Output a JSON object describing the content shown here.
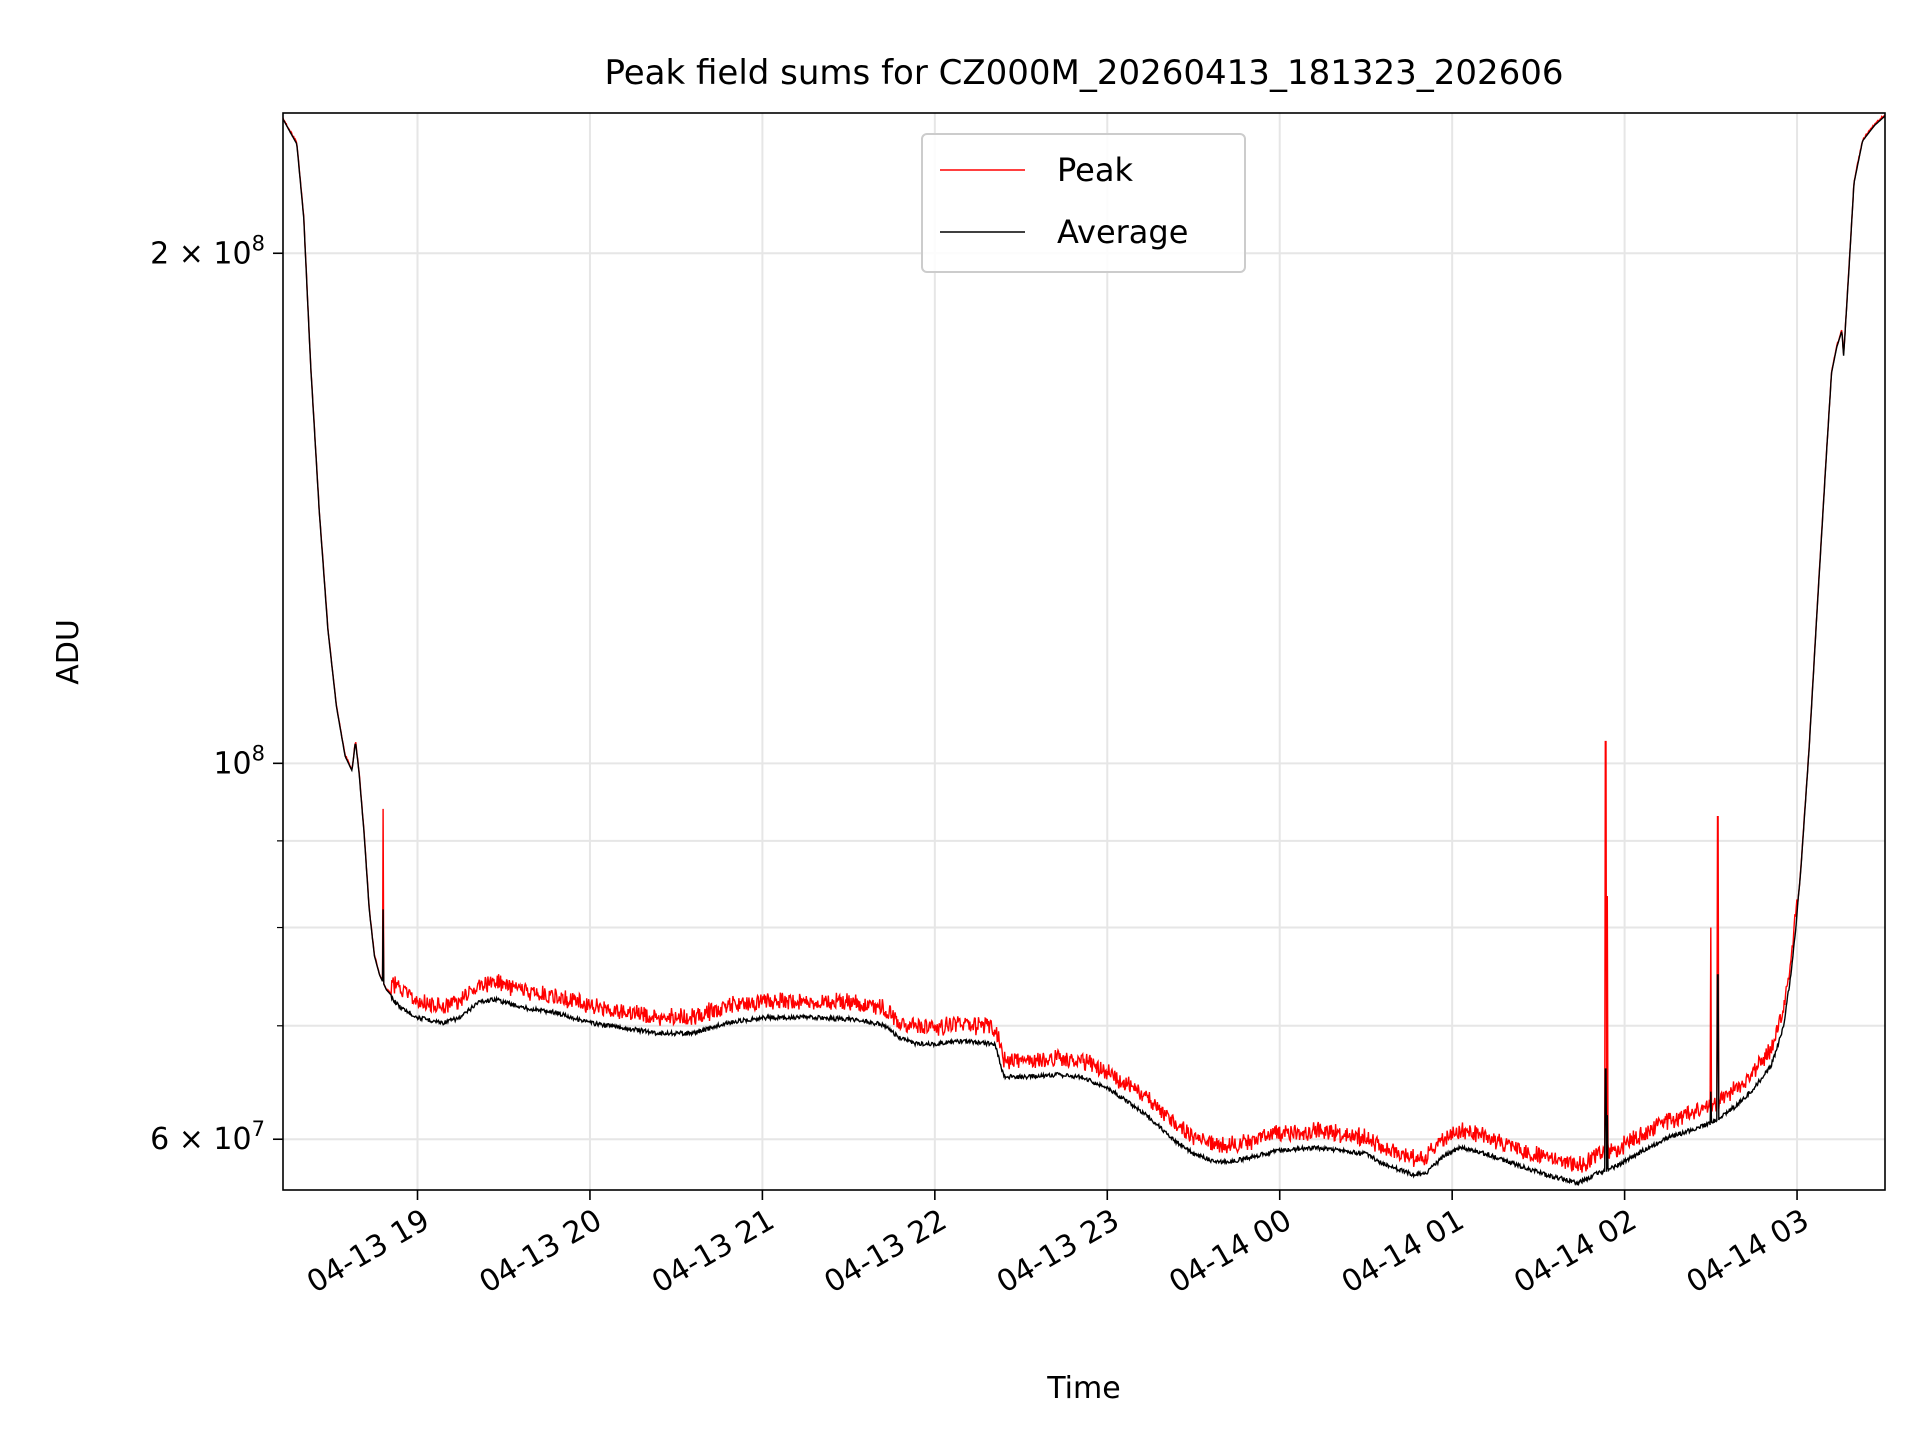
{
  "chart_data": {
    "type": "line",
    "title": "Peak field sums for CZ000M_20260413_181323_202606",
    "xlabel": "Time",
    "ylabel": "ADU",
    "yscale": "log",
    "ylim": [
      56000000,
      242000000
    ],
    "xlim_hours": [
      18.22,
      27.51
    ],
    "grid": true,
    "legend_position": "upper center",
    "x_ticks": [
      {
        "hour": 19,
        "label": "04-13 19"
      },
      {
        "hour": 20,
        "label": "04-13 20"
      },
      {
        "hour": 21,
        "label": "04-13 21"
      },
      {
        "hour": 22,
        "label": "04-13 22"
      },
      {
        "hour": 23,
        "label": "04-13 23"
      },
      {
        "hour": 24,
        "label": "04-14 00"
      },
      {
        "hour": 25,
        "label": "04-14 01"
      },
      {
        "hour": 26,
        "label": "04-14 02"
      },
      {
        "hour": 27,
        "label": "04-14 03"
      }
    ],
    "y_ticks": [
      {
        "value": 60000000,
        "base": "6 × 10",
        "exp": "7"
      },
      {
        "value": 100000000,
        "base": "10",
        "exp": "8"
      },
      {
        "value": 200000000,
        "base": "2 × 10",
        "exp": "8"
      }
    ],
    "y_minor_ticks": [
      70000000,
      80000000,
      90000000
    ],
    "series": [
      {
        "name": "Peak",
        "color": "#ff0000"
      },
      {
        "name": "Average",
        "color": "#000000"
      }
    ],
    "average_points": [
      [
        18.22,
        240000000
      ],
      [
        18.3,
        232000000
      ],
      [
        18.34,
        210000000
      ],
      [
        18.38,
        172000000
      ],
      [
        18.43,
        141000000
      ],
      [
        18.48,
        120000000
      ],
      [
        18.53,
        108000000
      ],
      [
        18.58,
        101000000
      ],
      [
        18.62,
        99000000
      ],
      [
        18.64,
        103000000
      ],
      [
        18.66,
        99000000
      ],
      [
        18.69,
        91000000
      ],
      [
        18.72,
        82000000
      ],
      [
        18.75,
        77000000
      ],
      [
        18.78,
        75000000
      ],
      [
        18.82,
        73500000
      ],
      [
        18.9,
        72000000
      ],
      [
        19.0,
        71000000
      ],
      [
        19.15,
        70500000
      ],
      [
        19.25,
        71000000
      ],
      [
        19.35,
        72500000
      ],
      [
        19.45,
        72800000
      ],
      [
        19.6,
        72000000
      ],
      [
        19.8,
        71500000
      ],
      [
        20.0,
        70500000
      ],
      [
        20.2,
        70000000
      ],
      [
        20.4,
        69500000
      ],
      [
        20.6,
        69500000
      ],
      [
        20.8,
        70500000
      ],
      [
        21.0,
        71000000
      ],
      [
        21.3,
        71000000
      ],
      [
        21.55,
        70800000
      ],
      [
        21.7,
        70300000
      ],
      [
        21.8,
        69000000
      ],
      [
        21.9,
        68500000
      ],
      [
        22.0,
        68500000
      ],
      [
        22.1,
        68700000
      ],
      [
        22.2,
        68700000
      ],
      [
        22.35,
        68500000
      ],
      [
        22.4,
        65500000
      ],
      [
        22.55,
        65500000
      ],
      [
        22.7,
        65700000
      ],
      [
        22.85,
        65500000
      ],
      [
        23.0,
        64500000
      ],
      [
        23.2,
        62500000
      ],
      [
        23.4,
        60000000
      ],
      [
        23.5,
        59000000
      ],
      [
        23.6,
        58500000
      ],
      [
        23.7,
        58300000
      ],
      [
        23.85,
        58800000
      ],
      [
        24.0,
        59300000
      ],
      [
        24.2,
        59500000
      ],
      [
        24.35,
        59300000
      ],
      [
        24.5,
        59000000
      ],
      [
        24.6,
        58200000
      ],
      [
        24.7,
        57700000
      ],
      [
        24.78,
        57300000
      ],
      [
        24.85,
        57500000
      ],
      [
        24.95,
        58800000
      ],
      [
        25.05,
        59500000
      ],
      [
        25.2,
        59000000
      ],
      [
        25.4,
        58000000
      ],
      [
        25.55,
        57300000
      ],
      [
        25.65,
        57000000
      ],
      [
        25.73,
        56700000
      ],
      [
        25.85,
        57500000
      ],
      [
        25.95,
        58000000
      ],
      [
        26.1,
        59200000
      ],
      [
        26.25,
        60300000
      ],
      [
        26.4,
        61000000
      ],
      [
        26.5,
        61500000
      ],
      [
        26.55,
        62000000
      ],
      [
        26.65,
        63000000
      ],
      [
        26.75,
        64500000
      ],
      [
        26.85,
        66500000
      ],
      [
        26.92,
        70000000
      ],
      [
        26.97,
        76000000
      ],
      [
        27.02,
        86000000
      ],
      [
        27.07,
        102000000
      ],
      [
        27.12,
        125000000
      ],
      [
        27.17,
        152000000
      ],
      [
        27.2,
        170000000
      ],
      [
        27.23,
        176000000
      ],
      [
        27.26,
        180000000
      ],
      [
        27.27,
        174000000
      ],
      [
        27.3,
        195000000
      ],
      [
        27.33,
        220000000
      ],
      [
        27.38,
        233000000
      ],
      [
        27.45,
        238000000
      ],
      [
        27.51,
        241000000
      ]
    ],
    "spikes": [
      {
        "hour": 18.8,
        "peak": 94000000,
        "average": 82000000
      },
      {
        "hour": 25.89,
        "peak": 103000000,
        "average": 66000000
      },
      {
        "hour": 25.9,
        "peak": 83500000,
        "average": 62000000
      },
      {
        "hour": 26.5,
        "peak": 80000000,
        "average": 64000000
      },
      {
        "hour": 26.54,
        "peak": 93000000,
        "average": 75000000
      }
    ]
  }
}
